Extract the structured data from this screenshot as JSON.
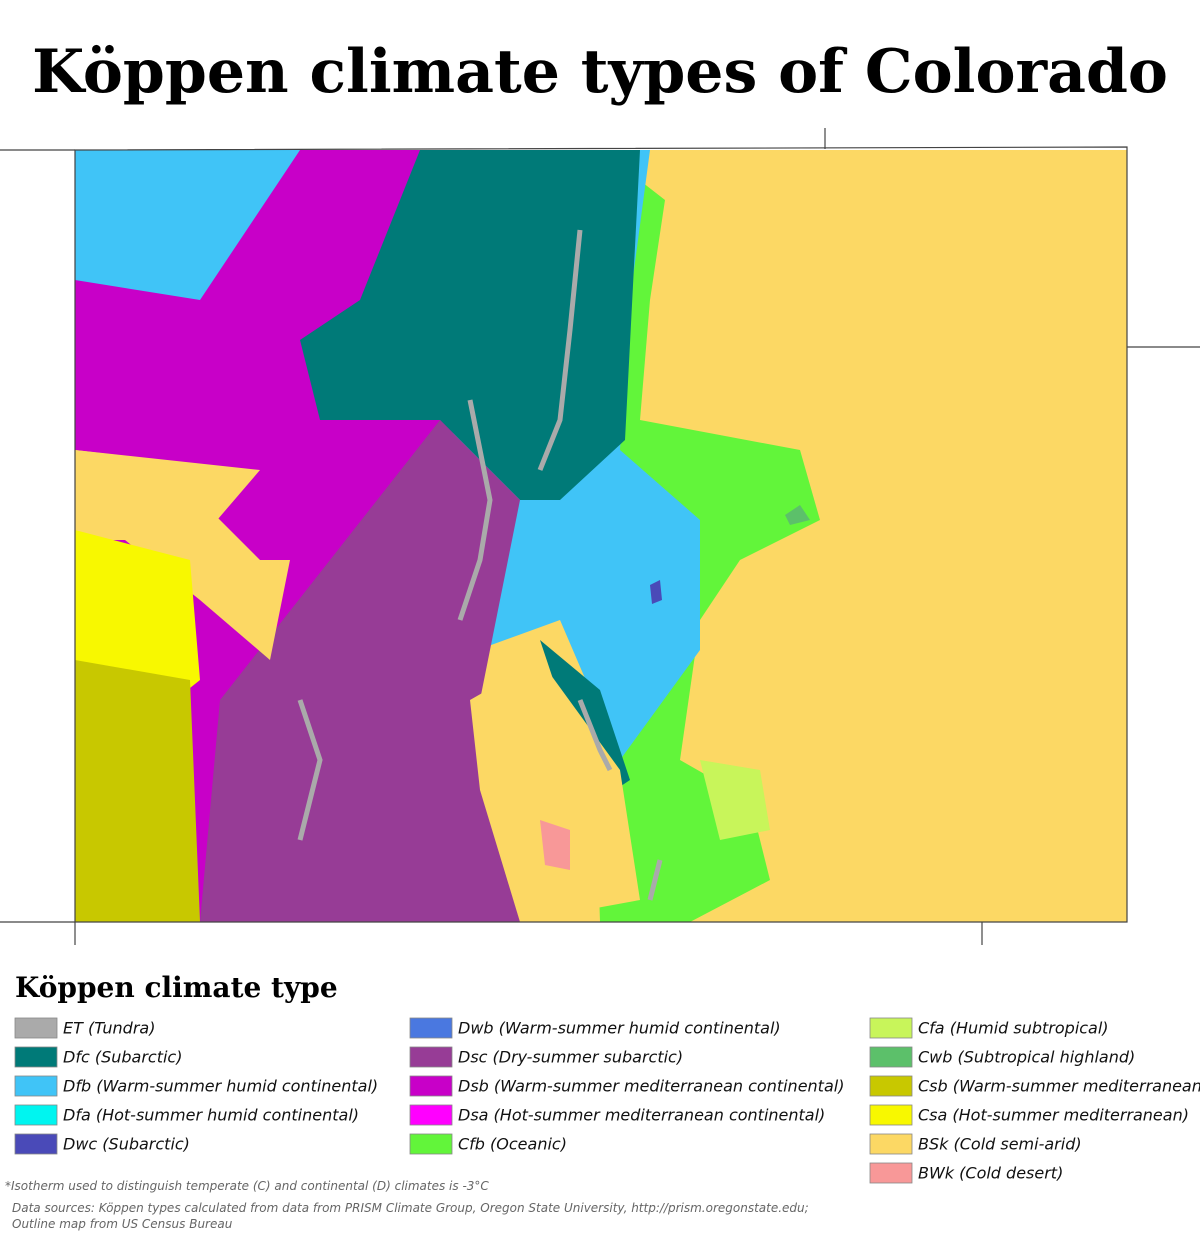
{
  "title": "Köppen climate types of Colorado",
  "legend": {
    "title": "Köppen climate type",
    "columns": [
      [
        {
          "label": "ET (Tundra)",
          "color": "#aaaaaa"
        },
        {
          "label": "Dfc (Subarctic)",
          "color": "#007a78"
        },
        {
          "label": "Dfb (Warm-summer humid continental)",
          "color": "#40c4f7"
        },
        {
          "label": "Dfa (Hot-summer humid continental)",
          "color": "#00f5f0"
        },
        {
          "label": "Dwc (Subarctic)",
          "color": "#4a4ab8"
        }
      ],
      [
        {
          "label": "Dwb (Warm-summer humid continental)",
          "color": "#4a78e0"
        },
        {
          "label": "Dsc (Dry-summer subarctic)",
          "color": "#973c96"
        },
        {
          "label": "Dsb (Warm-summer mediterranean continental)",
          "color": "#c800c8"
        },
        {
          "label": "Dsa (Hot-summer mediterranean continental)",
          "color": "#ff00ff"
        },
        {
          "label": "Cfb (Oceanic)",
          "color": "#62f53a"
        }
      ],
      [
        {
          "label": "Cfa (Humid subtropical)",
          "color": "#c8f55a"
        },
        {
          "label": "Cwb (Subtropical highland)",
          "color": "#5cc06a"
        },
        {
          "label": "Csb (Warm-summer mediterranean)",
          "color": "#c8c800"
        },
        {
          "label": "Csa (Hot-summer mediterranean)",
          "color": "#f8f800"
        },
        {
          "label": "BSk (Cold semi-arid)",
          "color": "#fcd864"
        },
        {
          "label": "BWk (Cold desert)",
          "color": "#f89898"
        }
      ]
    ]
  },
  "note": "*Isotherm used to distinguish temperate (C) and continental (D) climates is -3°C",
  "sources": [
    "Data sources: Köppen types calculated from data from PRISM Climate Group, Oregon State University, http://prism.oregonstate.edu;",
    "Outline map from US Census Bureau"
  ]
}
